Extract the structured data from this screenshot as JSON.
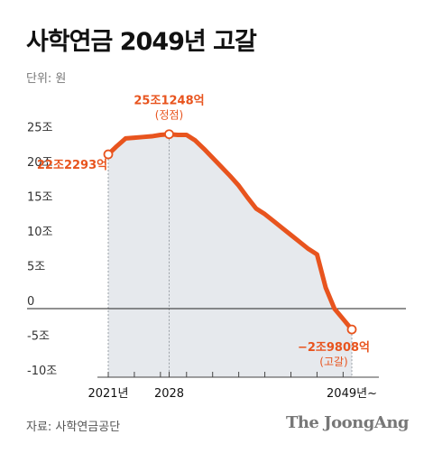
{
  "header": {
    "title": "사학연금 2049년 고갈",
    "unit": "단위: 원"
  },
  "footer": {
    "source": "자료: 사학연금공단",
    "brand": "The JoongAng"
  },
  "colors": {
    "line": "#e8541e",
    "area": "#e6e9ed",
    "axis": "#222222",
    "guide": "#9aa0a6"
  },
  "chart_data": {
    "type": "area",
    "x": [
      2021,
      2022,
      2023,
      2024,
      2025,
      2026,
      2027,
      2028,
      2029,
      2030,
      2031,
      2032,
      2033,
      2034,
      2035,
      2036,
      2037,
      2038,
      2039,
      2040,
      2041,
      2042,
      2043,
      2044,
      2045,
      2046,
      2047,
      2048,
      2049
    ],
    "values": [
      22.2,
      23.4,
      24.5,
      24.6,
      24.7,
      24.8,
      25.0,
      25.1,
      25.0,
      25.0,
      24.2,
      23.0,
      21.7,
      20.4,
      19.1,
      17.7,
      16.0,
      14.4,
      13.6,
      12.6,
      11.6,
      10.6,
      9.6,
      8.6,
      7.8,
      3.0,
      0.0,
      -1.5,
      -3.0
    ],
    "xlim": [
      2021,
      2049
    ],
    "ylim": [
      -10,
      25
    ],
    "y_ticks": [
      {
        "value": 25,
        "label": "25조"
      },
      {
        "value": 20,
        "label": "20조"
      },
      {
        "value": 15,
        "label": "15조"
      },
      {
        "value": 10,
        "label": "10조"
      },
      {
        "value": 5,
        "label": "5조"
      },
      {
        "value": 0,
        "label": "0"
      },
      {
        "value": -5,
        "label": "-5조"
      },
      {
        "value": -10,
        "label": "-10조"
      }
    ],
    "x_tick_labels": [
      {
        "value": 2021,
        "label": "2021년"
      },
      {
        "value": 2028,
        "label": "2028"
      },
      {
        "value": 2049,
        "label": "2049년~"
      }
    ],
    "annotations": [
      {
        "x": 2021,
        "y": 22.2,
        "label": "22조2293억",
        "sub": ""
      },
      {
        "x": 2028,
        "y": 25.1,
        "label": "25조1248억",
        "sub": "(정점)"
      },
      {
        "x": 2049,
        "y": -3.0,
        "label": "−2조9808억",
        "sub": "(고갈)"
      }
    ],
    "grid": false
  }
}
